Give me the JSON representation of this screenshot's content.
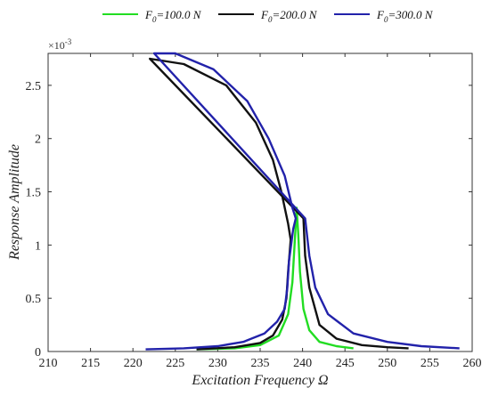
{
  "chart_data": {
    "type": "line",
    "xlabel": "Excitation Frequency Ω",
    "ylabel": "Response Amplitude",
    "y_multiplier": "×10",
    "y_multiplier_exp": "-3",
    "xlim": [
      210,
      260
    ],
    "ylim": [
      0,
      0.0028
    ],
    "x_ticks": [
      "210",
      "215",
      "220",
      "225",
      "230",
      "235",
      "240",
      "245",
      "250",
      "255",
      "260"
    ],
    "y_ticks": [
      "0",
      "0.5",
      "1",
      "1.5",
      "2",
      "2.5"
    ],
    "legend_position": "top",
    "series": [
      {
        "name": "F0=100.0 N",
        "legend_main": "F",
        "legend_sub": "0",
        "legend_rest": "=100.0 N",
        "color": "#22dd22",
        "points": [
          [
            227.5,
            2e-05
          ],
          [
            232,
            3e-05
          ],
          [
            235,
            6e-05
          ],
          [
            237.2,
            0.00015
          ],
          [
            238.3,
            0.00035
          ],
          [
            238.8,
            0.00065
          ],
          [
            239.2,
            0.0012
          ],
          [
            239.3,
            0.00135
          ],
          [
            239.5,
            0.0011
          ],
          [
            239.7,
            0.00075
          ],
          [
            240.1,
            0.0004
          ],
          [
            240.8,
            0.0002
          ],
          [
            242,
            9e-05
          ],
          [
            244,
            5e-05
          ],
          [
            246,
            3e-05
          ]
        ]
      },
      {
        "name": "F0=200.0 N",
        "legend_main": "F",
        "legend_sub": "0",
        "legend_rest": "=200.0 N",
        "color": "#111111",
        "points": [
          [
            227.5,
            2e-05
          ],
          [
            232,
            4e-05
          ],
          [
            235,
            8e-05
          ],
          [
            236.5,
            0.00015
          ],
          [
            237.6,
            0.0003
          ],
          [
            238.1,
            0.0005
          ],
          [
            238.3,
            0.00075
          ],
          [
            238.6,
            0.00105
          ],
          [
            238.3,
            0.0012
          ],
          [
            237.5,
            0.0015
          ],
          [
            236.5,
            0.0018
          ],
          [
            234.5,
            0.00215
          ],
          [
            231,
            0.0025
          ],
          [
            226,
            0.0027
          ],
          [
            222,
            0.00275
          ],
          [
            240.1,
            0.00125
          ],
          [
            240.3,
            0.0009
          ],
          [
            240.8,
            0.0006
          ],
          [
            242,
            0.00025
          ],
          [
            244,
            0.00012
          ],
          [
            247,
            6e-05
          ],
          [
            250,
            4e-05
          ],
          [
            252.5,
            3e-05
          ]
        ]
      },
      {
        "name": "F0=300.0 N",
        "legend_main": "F",
        "legend_sub": "0",
        "legend_rest": "=300.0 N",
        "color": "#2222aa",
        "points": [
          [
            221.5,
            2e-05
          ],
          [
            226,
            3e-05
          ],
          [
            230,
            5e-05
          ],
          [
            233,
            9e-05
          ],
          [
            235.5,
            0.00017
          ],
          [
            237,
            0.00028
          ],
          [
            237.9,
            0.0004
          ],
          [
            238.2,
            0.0006
          ],
          [
            238.4,
            0.00085
          ],
          [
            238.9,
            0.00115
          ],
          [
            239.2,
            0.00125
          ],
          [
            238.8,
            0.00135
          ],
          [
            237.9,
            0.00165
          ],
          [
            236,
            0.002
          ],
          [
            233.5,
            0.00235
          ],
          [
            229.5,
            0.00265
          ],
          [
            225,
            0.0028
          ],
          [
            222.5,
            0.0028
          ],
          [
            240.3,
            0.00125
          ],
          [
            240.8,
            0.0009
          ],
          [
            241.5,
            0.0006
          ],
          [
            243,
            0.00035
          ],
          [
            246,
            0.00017
          ],
          [
            250,
            9e-05
          ],
          [
            254,
            5e-05
          ],
          [
            258.5,
            3e-05
          ]
        ]
      }
    ]
  }
}
